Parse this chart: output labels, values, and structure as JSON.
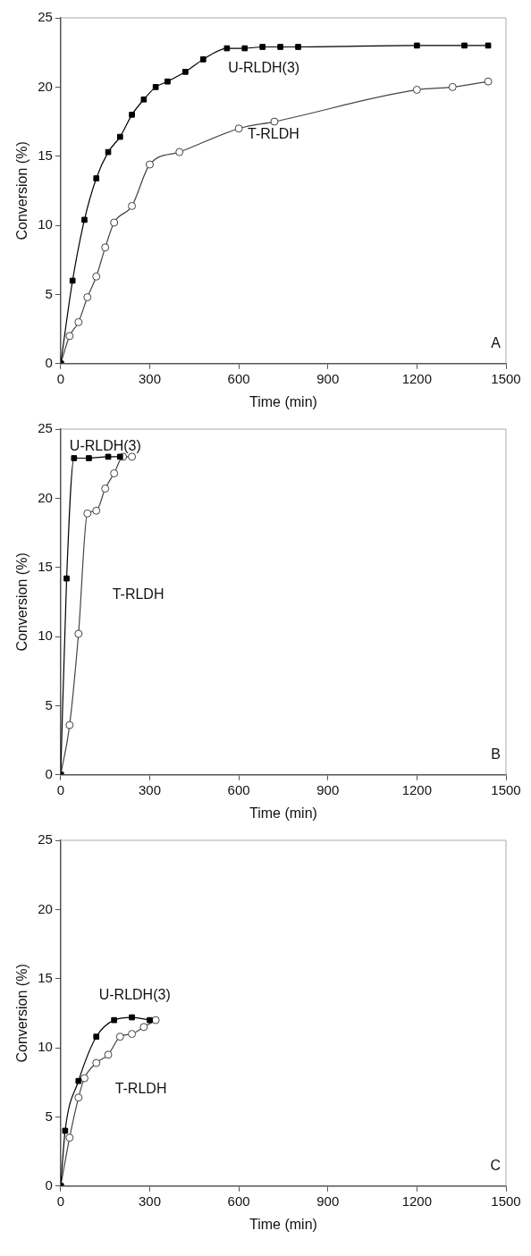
{
  "chart_data": [
    {
      "type": "line",
      "xlabel": "Time (min)",
      "ylabel": "Conversion (%)",
      "xlim": [
        0,
        1500
      ],
      "xticks": [
        0,
        300,
        600,
        900,
        1200,
        1500
      ],
      "ylim": [
        0,
        25
      ],
      "yticks": [
        0,
        5,
        10,
        15,
        20,
        25
      ],
      "legend": false,
      "grid": false,
      "annotations": [
        "A"
      ],
      "series": [
        {
          "name": "U-RLDH(3)",
          "color": "#000000",
          "marker": "square",
          "x": [
            0,
            40,
            80,
            120,
            160,
            200,
            240,
            280,
            320,
            360,
            420,
            480,
            560,
            620,
            680,
            740,
            800,
            1200,
            1360,
            1440
          ],
          "values": [
            0,
            6.0,
            10.4,
            13.4,
            15.3,
            16.4,
            18.0,
            19.1,
            20.0,
            20.4,
            21.1,
            22.0,
            22.8,
            22.8,
            22.9,
            22.9,
            22.9,
            23.0,
            23.0,
            23.0
          ]
        },
        {
          "name": "T-RLDH",
          "color": "#444444",
          "marker": "circle",
          "x": [
            0,
            30,
            60,
            90,
            120,
            150,
            180,
            240,
            300,
            400,
            600,
            720,
            1200,
            1320,
            1440
          ],
          "values": [
            0,
            2.0,
            3.0,
            4.8,
            6.3,
            8.4,
            10.2,
            11.4,
            14.4,
            15.3,
            17.0,
            17.5,
            19.8,
            20.0,
            20.4
          ]
        }
      ]
    },
    {
      "type": "line",
      "xlabel": "Time (min)",
      "ylabel": "Conversion (%)",
      "xlim": [
        0,
        1500
      ],
      "xticks": [
        0,
        300,
        600,
        900,
        1200,
        1500
      ],
      "ylim": [
        0,
        25
      ],
      "yticks": [
        0,
        5,
        10,
        15,
        20,
        25
      ],
      "legend": false,
      "grid": false,
      "annotations": [
        "B"
      ],
      "series": [
        {
          "name": "U-RLDH(3)",
          "color": "#000000",
          "marker": "square",
          "x": [
            0,
            20,
            45,
            95,
            160,
            200
          ],
          "values": [
            0,
            14.2,
            22.9,
            22.9,
            23.0,
            23.0
          ]
        },
        {
          "name": "T-RLDH",
          "color": "#444444",
          "marker": "circle",
          "x": [
            0,
            30,
            60,
            90,
            120,
            150,
            180,
            210,
            240
          ],
          "values": [
            0,
            3.6,
            10.2,
            18.9,
            19.1,
            20.7,
            21.8,
            23.0,
            23.0
          ]
        }
      ]
    },
    {
      "type": "line",
      "xlabel": "Time (min)",
      "ylabel": "Conversion (%)",
      "xlim": [
        0,
        1500
      ],
      "xticks": [
        0,
        300,
        600,
        900,
        1200,
        1500
      ],
      "ylim": [
        0,
        25
      ],
      "yticks": [
        0,
        5,
        10,
        15,
        20,
        25
      ],
      "legend": false,
      "grid": false,
      "annotations": [
        "C"
      ],
      "series": [
        {
          "name": "U-RLDH(3)",
          "color": "#000000",
          "marker": "square",
          "x": [
            0,
            15,
            60,
            120,
            180,
            240,
            300
          ],
          "values": [
            0,
            4.0,
            7.6,
            10.8,
            12.0,
            12.2,
            12.0
          ]
        },
        {
          "name": "T-RLDH",
          "color": "#444444",
          "marker": "circle",
          "x": [
            0,
            30,
            60,
            80,
            120,
            160,
            200,
            240,
            280,
            320
          ],
          "values": [
            0,
            3.5,
            6.4,
            7.8,
            8.9,
            9.5,
            10.8,
            11.0,
            11.5,
            12.0
          ]
        }
      ]
    }
  ]
}
